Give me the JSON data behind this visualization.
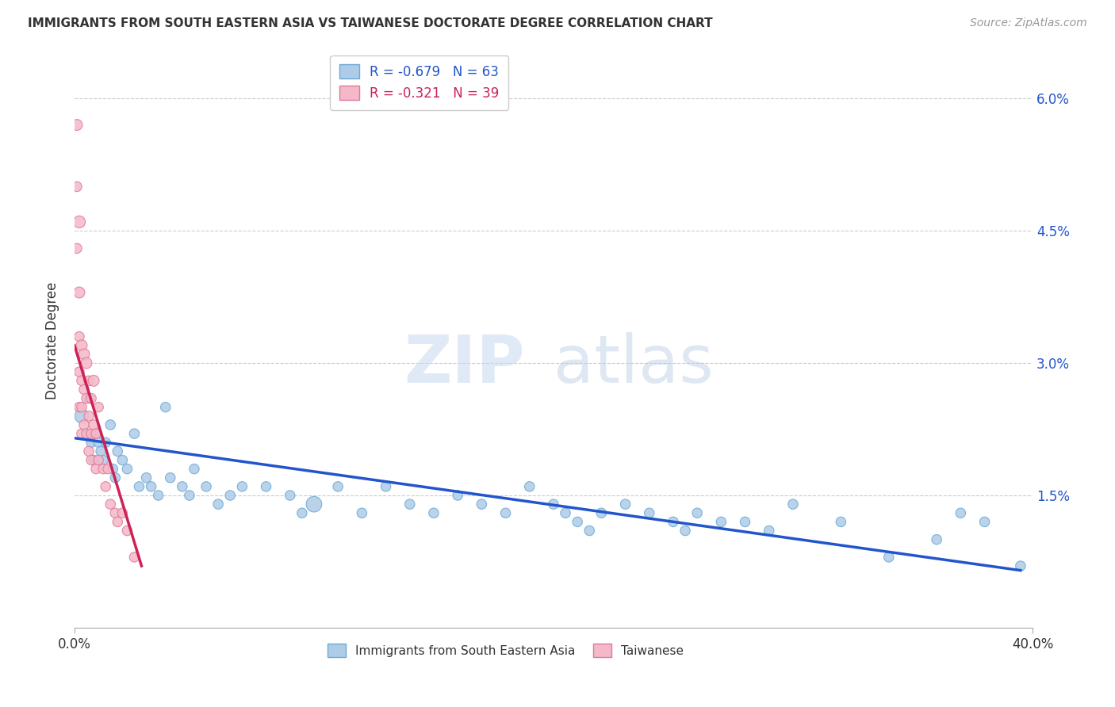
{
  "title": "IMMIGRANTS FROM SOUTH EASTERN ASIA VS TAIWANESE DOCTORATE DEGREE CORRELATION CHART",
  "source": "Source: ZipAtlas.com",
  "ylabel": "Doctorate Degree",
  "xlim": [
    0.0,
    0.4
  ],
  "ylim": [
    0.0,
    0.065
  ],
  "xticks": [
    0.0,
    0.4
  ],
  "xtick_labels": [
    "0.0%",
    "40.0%"
  ],
  "ytick_labels_right": [
    "1.5%",
    "3.0%",
    "4.5%",
    "6.0%"
  ],
  "yticks_right": [
    0.015,
    0.03,
    0.045,
    0.06
  ],
  "blue_R": -0.679,
  "blue_N": 63,
  "pink_R": -0.321,
  "pink_N": 39,
  "blue_color": "#aecce8",
  "blue_edge": "#6aaad4",
  "pink_color": "#f5b8c8",
  "pink_edge": "#e07898",
  "blue_line_color": "#2255cc",
  "pink_line_color": "#cc2255",
  "watermark_zip": "ZIP",
  "watermark_atlas": "atlas",
  "legend_label_blue": "Immigrants from South Eastern Asia",
  "legend_label_pink": "Taiwanese",
  "blue_scatter_x": [
    0.003,
    0.005,
    0.006,
    0.007,
    0.008,
    0.009,
    0.01,
    0.011,
    0.012,
    0.013,
    0.015,
    0.016,
    0.017,
    0.018,
    0.02,
    0.022,
    0.025,
    0.027,
    0.03,
    0.032,
    0.035,
    0.038,
    0.04,
    0.045,
    0.048,
    0.05,
    0.055,
    0.06,
    0.065,
    0.07,
    0.08,
    0.09,
    0.095,
    0.1,
    0.11,
    0.12,
    0.13,
    0.14,
    0.15,
    0.16,
    0.17,
    0.18,
    0.19,
    0.2,
    0.205,
    0.21,
    0.215,
    0.22,
    0.23,
    0.24,
    0.25,
    0.255,
    0.26,
    0.27,
    0.28,
    0.29,
    0.3,
    0.32,
    0.34,
    0.36,
    0.37,
    0.38,
    0.395
  ],
  "blue_scatter_y": [
    0.024,
    0.022,
    0.026,
    0.021,
    0.019,
    0.022,
    0.021,
    0.02,
    0.019,
    0.021,
    0.023,
    0.018,
    0.017,
    0.02,
    0.019,
    0.018,
    0.022,
    0.016,
    0.017,
    0.016,
    0.015,
    0.025,
    0.017,
    0.016,
    0.015,
    0.018,
    0.016,
    0.014,
    0.015,
    0.016,
    0.016,
    0.015,
    0.013,
    0.014,
    0.016,
    0.013,
    0.016,
    0.014,
    0.013,
    0.015,
    0.014,
    0.013,
    0.016,
    0.014,
    0.013,
    0.012,
    0.011,
    0.013,
    0.014,
    0.013,
    0.012,
    0.011,
    0.013,
    0.012,
    0.012,
    0.011,
    0.014,
    0.012,
    0.008,
    0.01,
    0.013,
    0.012,
    0.007
  ],
  "blue_sizes": [
    160,
    80,
    80,
    80,
    80,
    80,
    80,
    80,
    80,
    80,
    80,
    80,
    80,
    80,
    80,
    80,
    80,
    80,
    80,
    80,
    80,
    80,
    80,
    80,
    80,
    80,
    80,
    80,
    80,
    80,
    80,
    80,
    80,
    200,
    80,
    80,
    80,
    80,
    80,
    80,
    80,
    80,
    80,
    80,
    80,
    80,
    80,
    80,
    80,
    80,
    80,
    80,
    80,
    80,
    80,
    80,
    80,
    80,
    80,
    80,
    80,
    80,
    80
  ],
  "pink_scatter_x": [
    0.001,
    0.001,
    0.001,
    0.002,
    0.002,
    0.002,
    0.002,
    0.002,
    0.003,
    0.003,
    0.003,
    0.003,
    0.004,
    0.004,
    0.004,
    0.005,
    0.005,
    0.005,
    0.006,
    0.006,
    0.006,
    0.007,
    0.007,
    0.007,
    0.008,
    0.008,
    0.009,
    0.009,
    0.01,
    0.01,
    0.012,
    0.013,
    0.014,
    0.015,
    0.017,
    0.018,
    0.02,
    0.022,
    0.025
  ],
  "pink_scatter_y": [
    0.057,
    0.05,
    0.043,
    0.046,
    0.038,
    0.033,
    0.029,
    0.025,
    0.032,
    0.028,
    0.025,
    0.022,
    0.031,
    0.027,
    0.023,
    0.03,
    0.026,
    0.022,
    0.028,
    0.024,
    0.02,
    0.026,
    0.022,
    0.019,
    0.028,
    0.023,
    0.022,
    0.018,
    0.025,
    0.019,
    0.018,
    0.016,
    0.018,
    0.014,
    0.013,
    0.012,
    0.013,
    0.011,
    0.008
  ],
  "pink_sizes": [
    100,
    80,
    80,
    120,
    100,
    80,
    80,
    80,
    100,
    80,
    80,
    80,
    100,
    80,
    80,
    100,
    80,
    80,
    80,
    80,
    80,
    80,
    80,
    80,
    100,
    80,
    80,
    80,
    80,
    80,
    80,
    80,
    80,
    80,
    80,
    80,
    80,
    80,
    80
  ],
  "blue_trend_x": [
    0.0,
    0.395
  ],
  "blue_trend_y": [
    0.0215,
    0.0065
  ],
  "pink_trend_x": [
    0.0,
    0.028
  ],
  "pink_trend_y": [
    0.032,
    0.007
  ]
}
